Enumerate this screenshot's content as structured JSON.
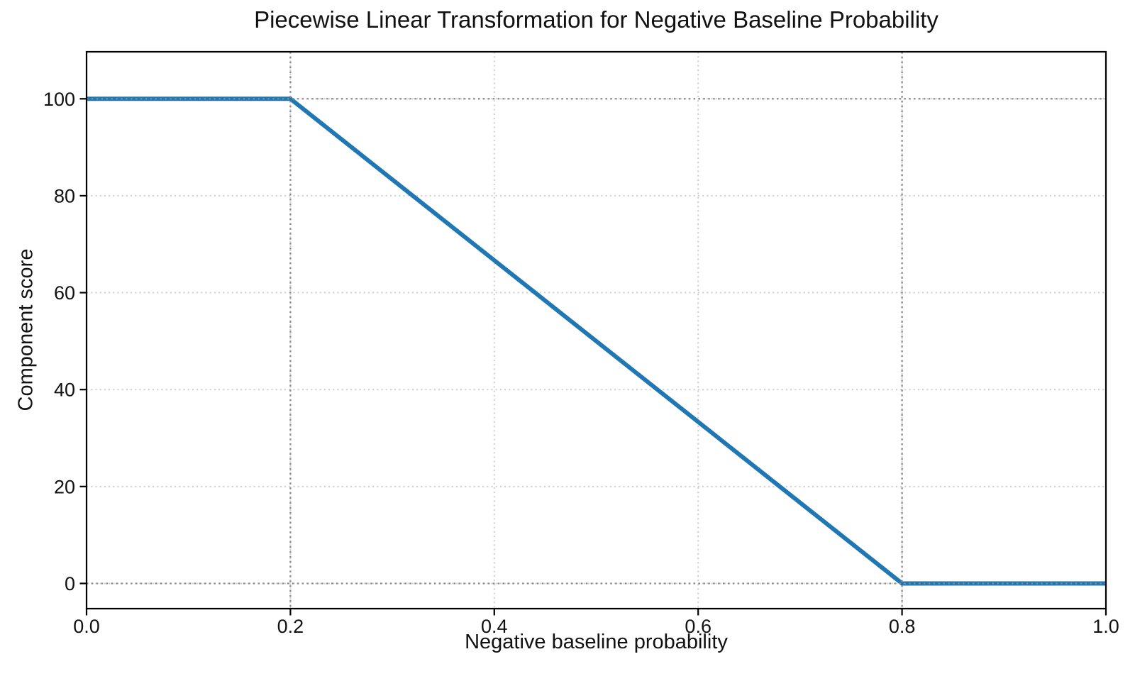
{
  "chart_data": {
    "type": "line",
    "title": "Piecewise Linear Transformation for Negative Baseline Probability",
    "xlabel": "Negative baseline probability",
    "ylabel": "Component score",
    "xlim": [
      0.0,
      1.0
    ],
    "ylim": [
      -5.2,
      109.7
    ],
    "grid": true,
    "legend": false,
    "series": [
      {
        "name": "component-score-transformation",
        "color": "#1f77b4",
        "points": [
          [
            0.0,
            100
          ],
          [
            0.2,
            100
          ],
          [
            0.8,
            0
          ],
          [
            1.0,
            0
          ]
        ]
      }
    ],
    "xticks": {
      "values": [
        0.0,
        0.2,
        0.4,
        0.6,
        0.8,
        1.0
      ],
      "labels": [
        "0.0",
        "0.2",
        "0.4",
        "0.6",
        "0.8",
        "1.0"
      ]
    },
    "yticks": {
      "values": [
        0,
        20,
        40,
        60,
        80,
        100
      ],
      "labels": [
        "0",
        "20",
        "40",
        "60",
        "80",
        "100"
      ]
    },
    "guide_lines": {
      "vertical_x": [
        0.2,
        0.8
      ],
      "horizontal_y": [
        0,
        100
      ]
    },
    "colors": {
      "line": "#1f77b4",
      "grid": "#cfcfcf",
      "guide": "#8a8a8a",
      "axis": "#000000",
      "text": "#111111",
      "background": "#ffffff"
    }
  }
}
